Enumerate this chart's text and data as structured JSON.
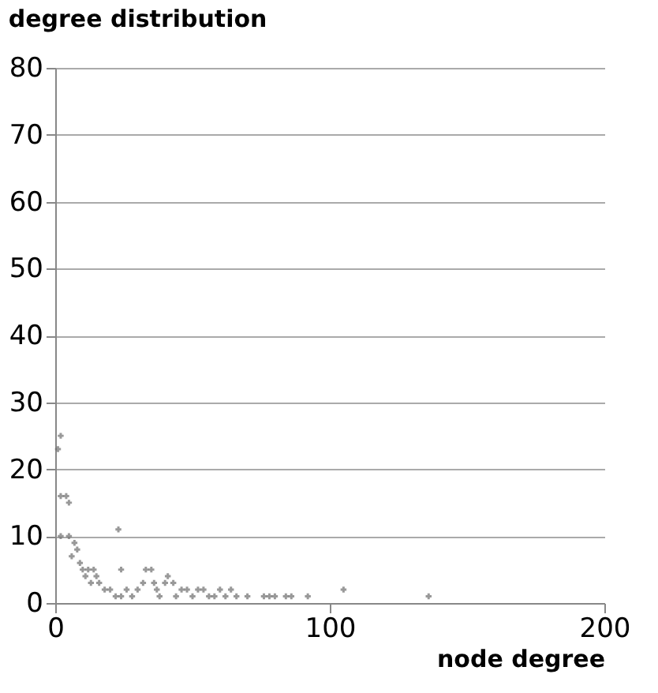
{
  "chart_data": {
    "type": "scatter",
    "title": "degree distribution",
    "xlabel": "node degree",
    "x": [
      1,
      2,
      2,
      4,
      5,
      2,
      5,
      7,
      8,
      6,
      9,
      10,
      12,
      14,
      11,
      13,
      15,
      16,
      18,
      20,
      22,
      24,
      23,
      24,
      26,
      28,
      30,
      32,
      33,
      35,
      36,
      37,
      38,
      40,
      41,
      43,
      44,
      46,
      48,
      50,
      52,
      54,
      56,
      58,
      60,
      62,
      64,
      66,
      70,
      76,
      78,
      80,
      84,
      86,
      92,
      105,
      136
    ],
    "values": [
      23,
      25,
      16,
      16,
      15,
      10,
      10,
      9,
      8,
      7,
      6,
      5,
      5,
      5,
      4,
      3,
      4,
      3,
      2,
      2,
      1,
      1,
      11,
      5,
      2,
      1,
      2,
      3,
      5,
      5,
      3,
      2,
      1,
      3,
      4,
      3,
      1,
      2,
      2,
      1,
      2,
      2,
      1,
      1,
      2,
      1,
      2,
      1,
      1,
      1,
      1,
      1,
      1,
      1,
      1,
      2,
      1
    ],
    "color": "#6d6d6d",
    "marker": "cross",
    "xlim": [
      0,
      200
    ],
    "xticks": [
      0,
      100,
      200
    ],
    "ylim": [
      0,
      80
    ],
    "yticks": [
      0,
      10,
      20,
      30,
      40,
      50,
      60,
      70,
      80
    ],
    "grid": "y"
  }
}
